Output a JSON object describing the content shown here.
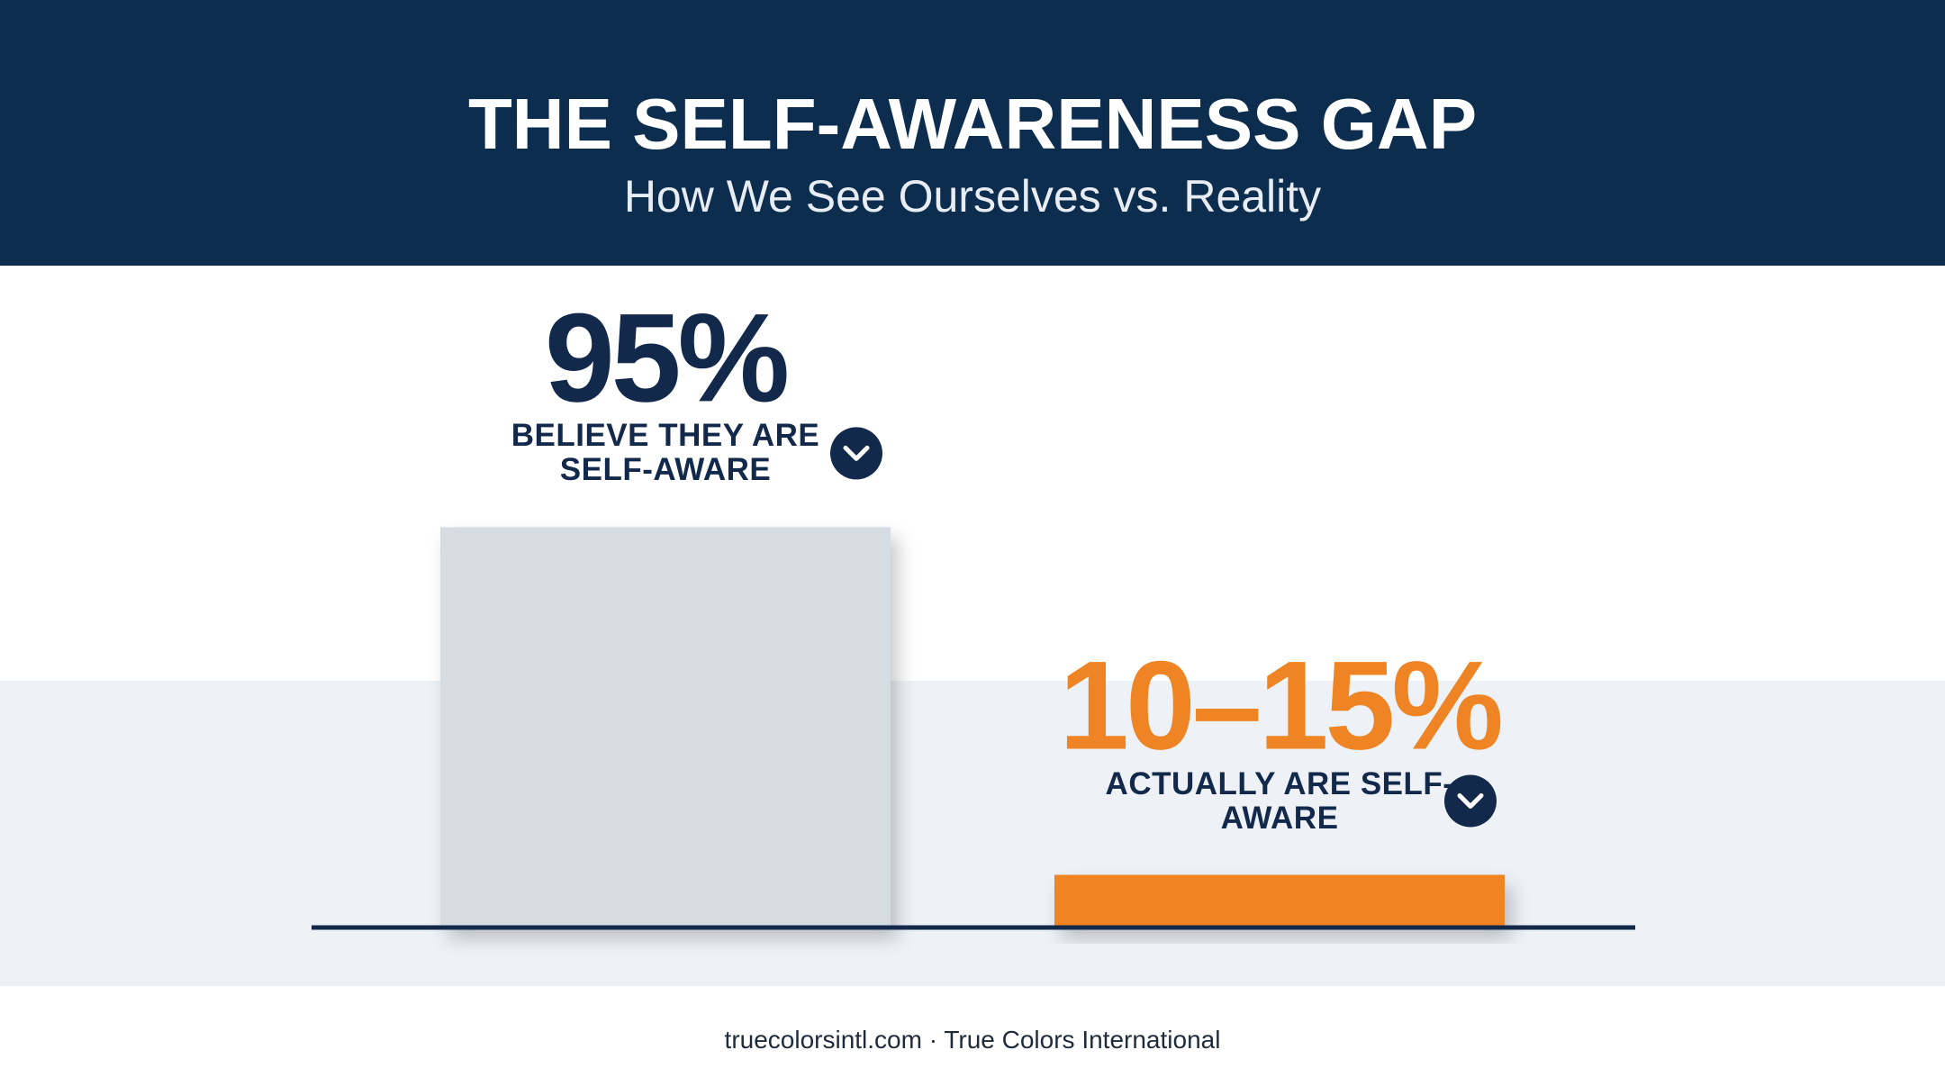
{
  "chart_data": {
    "type": "bar",
    "title": "THE SELF-AWARENESS GAP",
    "subtitle": "How We See Ourselves vs. Reality",
    "categories": [
      "BELIEVE THEY ARE SELF-AWARE",
      "ACTUALLY ARE SELF-AWARE"
    ],
    "values": [
      95,
      12.5
    ],
    "value_labels": [
      "95%",
      "10–15%"
    ],
    "colors": [
      "#d5dde2",
      "#ee8423"
    ],
    "label_colors": [
      "#13294b",
      "#ee8423"
    ],
    "ylim": [
      0,
      100
    ],
    "source": "truecolorsintl.com · True Colors International"
  }
}
